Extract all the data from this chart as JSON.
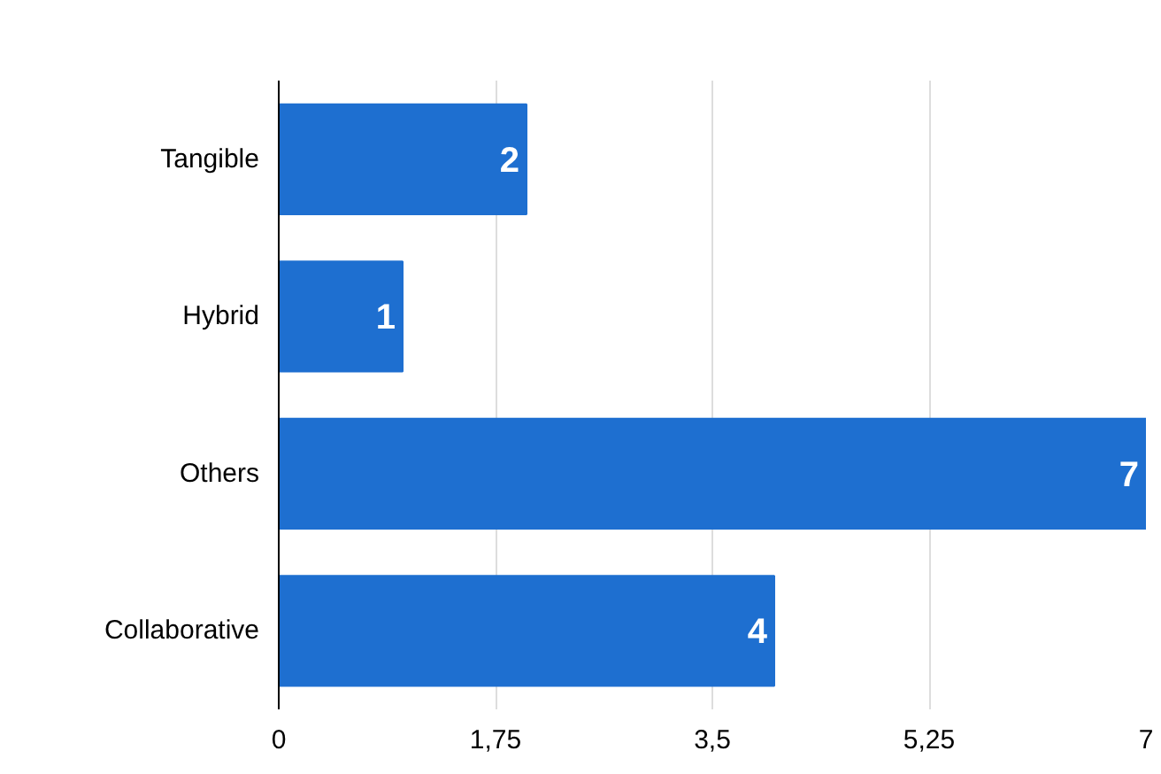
{
  "chart_data": {
    "type": "bar",
    "orientation": "horizontal",
    "categories": [
      "Tangible",
      "Hybrid",
      "Others",
      "Collaborative"
    ],
    "values": [
      2,
      1,
      7,
      4
    ],
    "color": "#1e6fd0",
    "xlim": [
      0,
      7
    ],
    "xticks": [
      0,
      {
        "value": 1.75,
        "label": "1,75"
      },
      {
        "value": 3.5,
        "label": "3,5"
      },
      {
        "value": 5.25,
        "label": "5,25"
      },
      7
    ],
    "grid": "x",
    "data_labels": true
  }
}
